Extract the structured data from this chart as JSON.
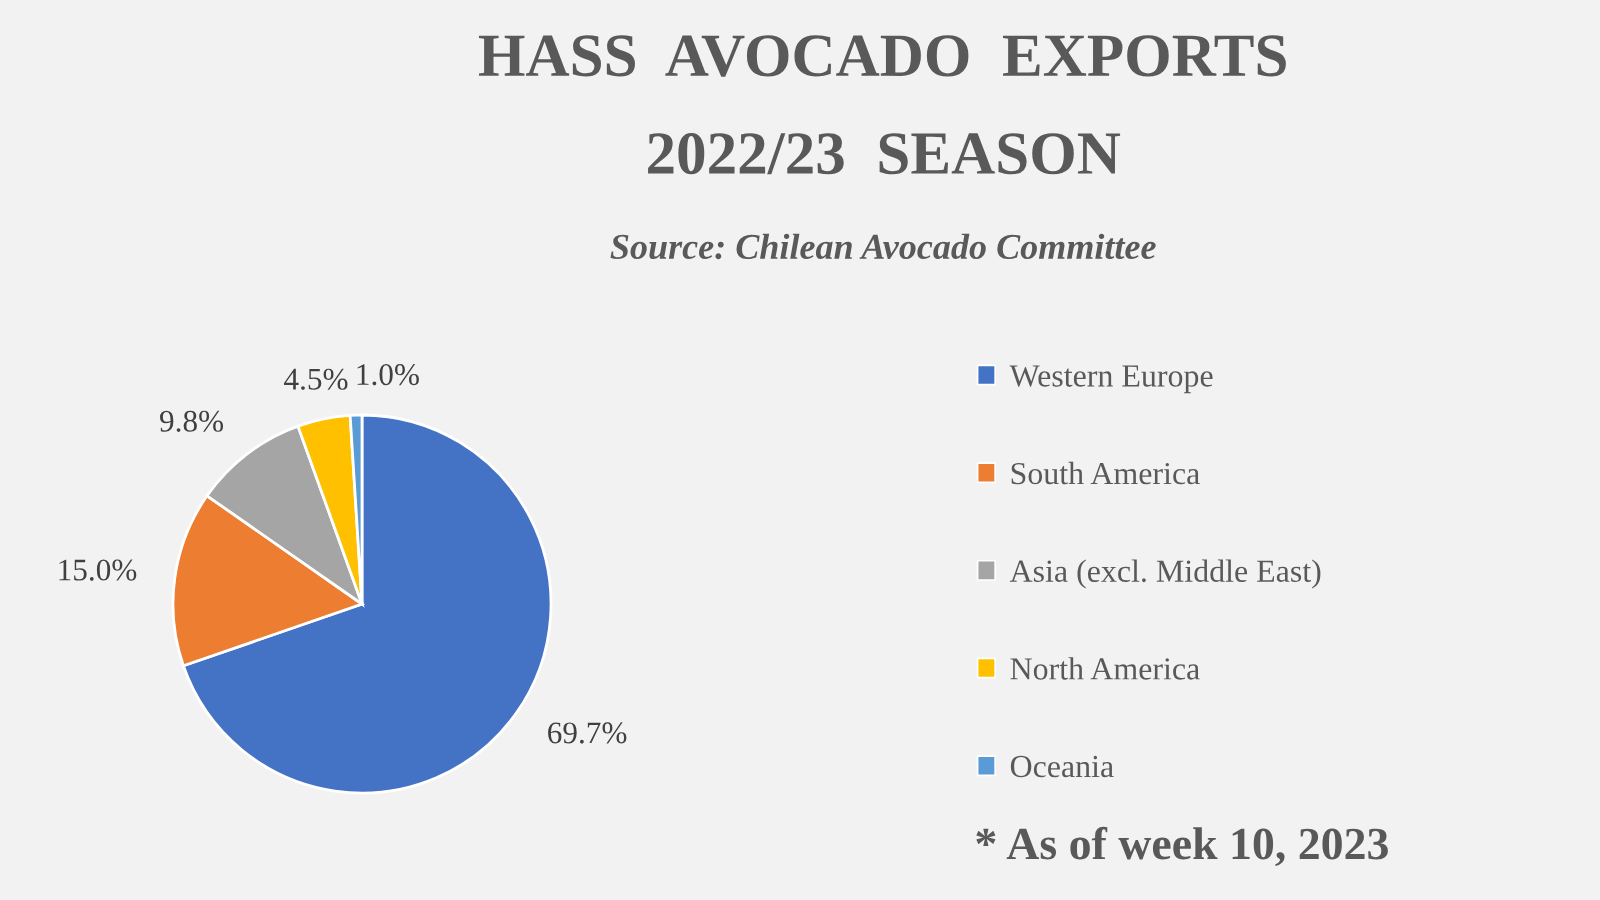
{
  "chart_data": {
    "type": "pie",
    "title": "HASS  AVOCADO  EXPORTS\n2022/23  SEASON",
    "subtitle": "Source: Chilean Avocado Committee",
    "categories": [
      "Western Europe",
      "South America",
      "Asia (excl. Middle East)",
      "North America",
      "Oceania"
    ],
    "values": [
      69.7,
      15.0,
      9.8,
      4.5,
      1.0
    ],
    "colors": [
      "#4472c4",
      "#ed7d31",
      "#a5a5a5",
      "#ffc000",
      "#5b9bd5"
    ],
    "value_labels": [
      "69.7%",
      "15.0%",
      "9.8%",
      "4.5%",
      "1.0%"
    ],
    "legend": "right",
    "annotations": [
      "* As of week 10, 2023"
    ]
  }
}
